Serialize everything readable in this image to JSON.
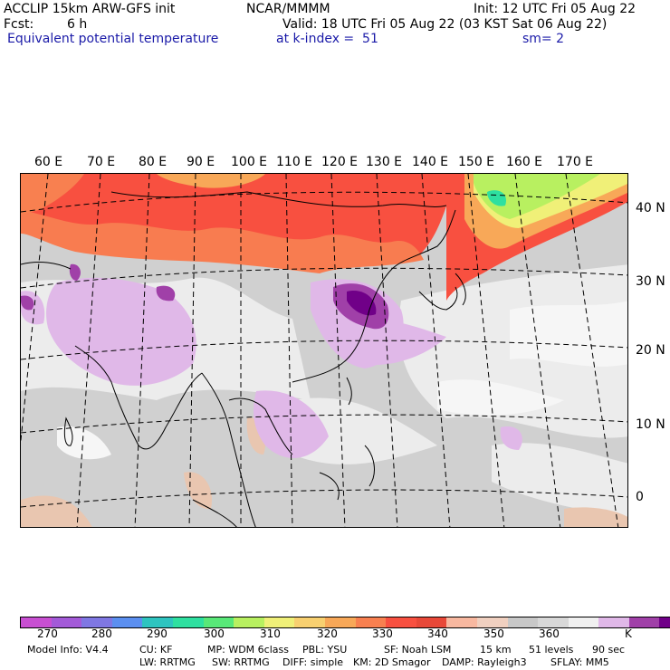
{
  "header": {
    "model_title": "ACCLIP 15km ARW-GFS init",
    "org": "NCAR/MMMM",
    "init": "Init: 12 UTC Fri 05 Aug 22",
    "fcst_label": "Fcst:",
    "fcst_value": "6 h",
    "valid": "Valid: 18 UTC Fri 05 Aug 22 (03 KST Sat 06 Aug 22)",
    "field": "Equivalent potential temperature",
    "level": "at k-index =  51",
    "smoothing": "sm= 2"
  },
  "map": {
    "lon_labels": [
      "60 E",
      "70 E",
      "80 E",
      "90 E",
      "100 E",
      "110 E",
      "120 E",
      "130 E",
      "140 E",
      "150 E",
      "160 E",
      "170 E"
    ],
    "lat_labels": [
      "40 N",
      "30 N",
      "20 N",
      "10 N",
      "0"
    ]
  },
  "colorbar": {
    "colors": [
      "#c84fd2",
      "#a35ad8",
      "#7f77e3",
      "#5b8ff0",
      "#2ec4c0",
      "#2ee0a0",
      "#58e878",
      "#b8f060",
      "#f0f078",
      "#f8d070",
      "#f8a858",
      "#f88050",
      "#f85040",
      "#e84838",
      "#f8b8a0",
      "#f0d0c0",
      "#c8c8c8",
      "#d8d8d8",
      "#f0f0f0",
      "#e0b8e8",
      "#a040a8",
      "#700088"
    ],
    "labels": [
      "270",
      "280",
      "290",
      "300",
      "310",
      "320",
      "330",
      "340",
      "350",
      "360"
    ],
    "unit": "K"
  },
  "model_info": {
    "line1": [
      "Model Info: V4.4",
      "CU: KF",
      "MP: WDM 6class",
      "PBL: YSU",
      "SF: Noah LSM",
      "15 km",
      "51 levels",
      "90 sec"
    ],
    "line2": [
      "LW: RRTMG",
      "SW: RRTMG",
      "DIFF: simple",
      "KM: 2D Smagor",
      "DAMP: Rayleigh3",
      "SFLAY: MM5"
    ]
  }
}
